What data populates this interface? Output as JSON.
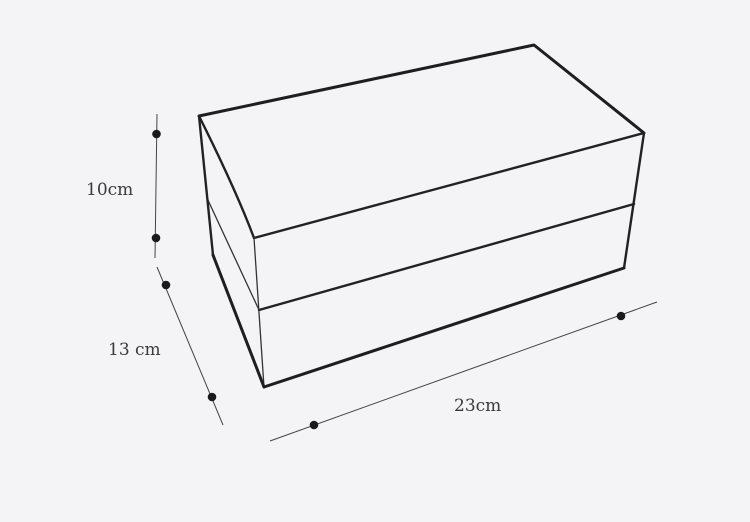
{
  "diagram": {
    "subject": "box",
    "dimensions": {
      "height": "10cm",
      "depth": "13 cm",
      "length": "23cm"
    },
    "colors": {
      "background": "#f4f4f6",
      "line": "#1e1e1e",
      "text": "#3a3a3a"
    }
  }
}
